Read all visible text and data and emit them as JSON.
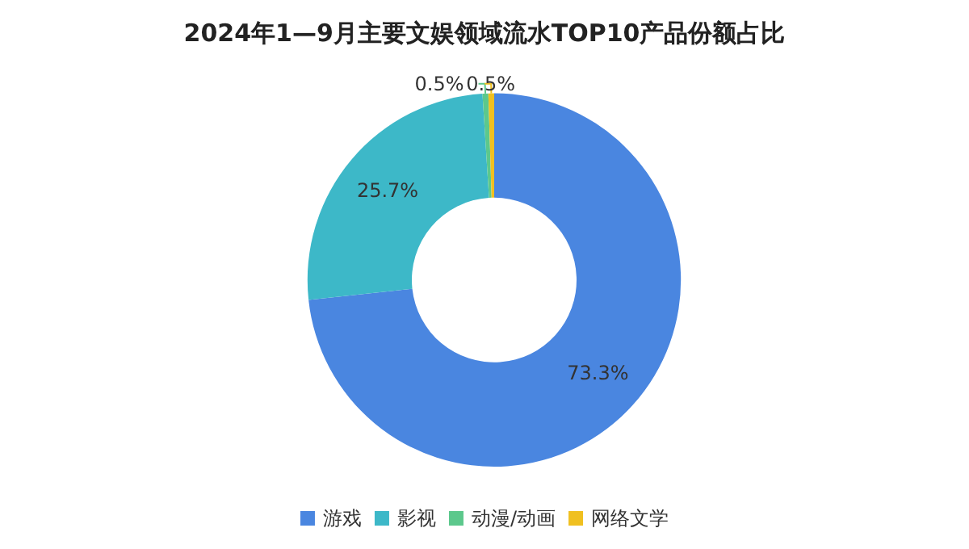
{
  "chart_data": {
    "type": "donut",
    "title": "2024年1—9月主要文娱领域流水TOP10产品份额占比",
    "categories": [
      "游戏",
      "影视",
      "动漫/动画",
      "网络文学"
    ],
    "values": [
      73.3,
      25.7,
      0.5,
      0.5
    ],
    "colors": [
      "#4a86e0",
      "#3db8c8",
      "#5cc88c",
      "#f0c020"
    ],
    "value_labels": [
      "73.3%",
      "25.7%",
      "0.5%",
      "0.5%"
    ],
    "legend": "bottom"
  }
}
